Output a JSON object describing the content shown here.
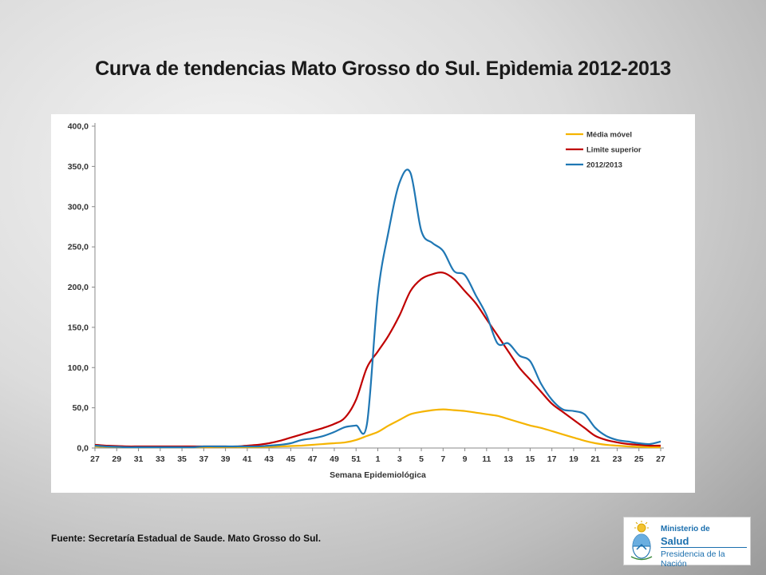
{
  "page": {
    "title": "Curva de tendencias Mato Grosso do Sul. Epìdemia 2012-2013",
    "source": "Fuente: Secretaría  Estadual de Saude. Mato Grosso do Sul.",
    "logo": {
      "line1": "Ministerio de",
      "line2": "Salud",
      "line3": "Presidencia de la Nación",
      "icon": "argentina-coat-of-arms"
    }
  },
  "chart_data": {
    "type": "line",
    "title": "",
    "xlabel": "Semana Epidemiológica",
    "ylabel": "",
    "ylim": [
      0,
      400
    ],
    "yticks": [
      "0,0",
      "50,0",
      "100,0",
      "150,0",
      "200,0",
      "250,0",
      "300,0",
      "350,0",
      "400,0"
    ],
    "grid": false,
    "legend": "top-right",
    "x": [
      27,
      28,
      29,
      30,
      31,
      32,
      33,
      34,
      35,
      36,
      37,
      38,
      39,
      40,
      41,
      42,
      43,
      44,
      45,
      46,
      47,
      48,
      49,
      50,
      51,
      52,
      1,
      2,
      3,
      4,
      5,
      6,
      7,
      8,
      9,
      10,
      11,
      12,
      13,
      14,
      15,
      16,
      17,
      18,
      19,
      20,
      21,
      22,
      23,
      24,
      25,
      26,
      27
    ],
    "xtick_labels": [
      "27",
      "29",
      "31",
      "33",
      "35",
      "37",
      "39",
      "41",
      "43",
      "45",
      "47",
      "49",
      "51",
      "1",
      "3",
      "5",
      "7",
      "9",
      "11",
      "13",
      "15",
      "17",
      "19",
      "21",
      "23",
      "25",
      "27"
    ],
    "series": [
      {
        "name": "Média móvel",
        "color": "#f5b400",
        "values": [
          2,
          1.5,
          1.2,
          1,
          1,
          1,
          1,
          1,
          1,
          1,
          1,
          1,
          1,
          1,
          1,
          1,
          1.5,
          2,
          2.5,
          3,
          4,
          5,
          6,
          7,
          10,
          15,
          20,
          28,
          35,
          42,
          45,
          47,
          48,
          47,
          46,
          44,
          42,
          40,
          36,
          32,
          28,
          25,
          21,
          17,
          13,
          9,
          6,
          4,
          3,
          2,
          1.5,
          1,
          1
        ]
      },
      {
        "name": "Limite superior",
        "color": "#c00000",
        "values": [
          4,
          3,
          2.5,
          2,
          2,
          2,
          2,
          2,
          2,
          2,
          2,
          2,
          2,
          2,
          3,
          4,
          6,
          9,
          13,
          17,
          21,
          25,
          30,
          38,
          60,
          100,
          120,
          140,
          165,
          195,
          210,
          216,
          218,
          210,
          195,
          180,
          160,
          140,
          120,
          100,
          85,
          70,
          55,
          45,
          35,
          25,
          15,
          10,
          7,
          5,
          4,
          3,
          3
        ]
      },
      {
        "name": "2012/2013",
        "color": "#1f77b4",
        "values": [
          3,
          2,
          1.5,
          1,
          1,
          1,
          1,
          1,
          1,
          1,
          2,
          2,
          2,
          2,
          2,
          2,
          3,
          4,
          6,
          10,
          12,
          15,
          20,
          26,
          28,
          30,
          190,
          270,
          330,
          342,
          270,
          255,
          245,
          220,
          215,
          190,
          165,
          130,
          130,
          115,
          108,
          80,
          60,
          48,
          46,
          42,
          25,
          15,
          10,
          8,
          6,
          5,
          8
        ]
      }
    ]
  }
}
